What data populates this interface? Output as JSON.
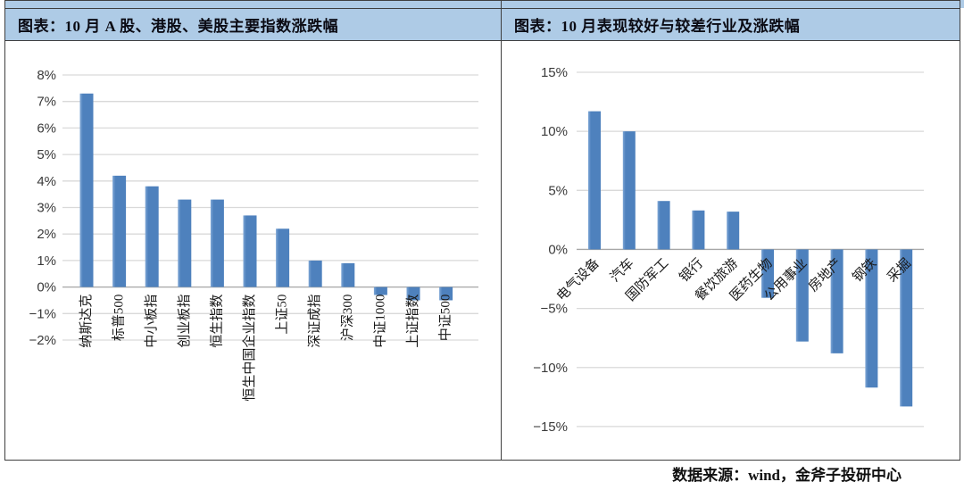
{
  "panels": {
    "left_title": "图表：10 月 A 股、港股、美股主要指数涨跌幅",
    "right_title": "图表：10 月表现较好与较差行业及涨跌幅"
  },
  "footer": {
    "source_label": "数据来源：wind，金斧子投研中心"
  },
  "colors": {
    "bar": "#4e81bd",
    "bar_highlight": "#7fa7d6",
    "header_bg": "#aecbe6",
    "border": "#3f3f3f",
    "gridline": "#d9d9d9",
    "baseline": "#a6a6a6",
    "tick_text": "#3a3a3a",
    "category_text": "#1a1a1a"
  },
  "chart_data": [
    {
      "type": "bar",
      "title": "图表：10 月 A 股、港股、美股主要指数涨跌幅",
      "categories": [
        "纳斯达克",
        "标普500",
        "中小板指",
        "创业板指",
        "恒生指数",
        "恒生中国企业指数",
        "上证50",
        "深证成指",
        "沪深300",
        "中证1000",
        "上证指数",
        "中证500"
      ],
      "values": [
        7.3,
        4.2,
        3.8,
        3.3,
        3.3,
        2.7,
        2.2,
        1.0,
        0.9,
        -0.3,
        -0.5,
        -0.5
      ],
      "ylabel": "",
      "xlabel": "",
      "ylim": [
        -2,
        8
      ],
      "ystep": 1,
      "ytick_values": [
        8,
        7,
        6,
        5,
        4,
        3,
        2,
        1,
        0,
        -1,
        -2
      ],
      "ytick_labels": [
        "8%",
        "7%",
        "6%",
        "5%",
        "4%",
        "3%",
        "2%",
        "1%",
        "0%",
        "−1%",
        "−2%"
      ],
      "grid": true,
      "legend": false,
      "label_rotation": "vertical-90"
    },
    {
      "type": "bar",
      "title": "图表：10 月表现较好与较差行业及涨跌幅",
      "categories": [
        "电气设备",
        "汽车",
        "国防军工",
        "银行",
        "餐饮旅游",
        "医药生物",
        "公用事业",
        "房地产",
        "钢铁",
        "采掘"
      ],
      "values": [
        11.7,
        10.0,
        4.1,
        3.3,
        3.2,
        -4.1,
        -7.8,
        -8.8,
        -11.7,
        -13.3
      ],
      "ylabel": "",
      "xlabel": "",
      "ylim": [
        -15,
        15
      ],
      "ystep": 5,
      "ytick_values": [
        15,
        10,
        5,
        0,
        -5,
        -10,
        -15
      ],
      "ytick_labels": [
        "15%",
        "10%",
        "5%",
        "0%",
        "−5%",
        "−10%",
        "−15%"
      ],
      "grid": true,
      "legend": false,
      "label_rotation": "diagonal-45"
    }
  ]
}
